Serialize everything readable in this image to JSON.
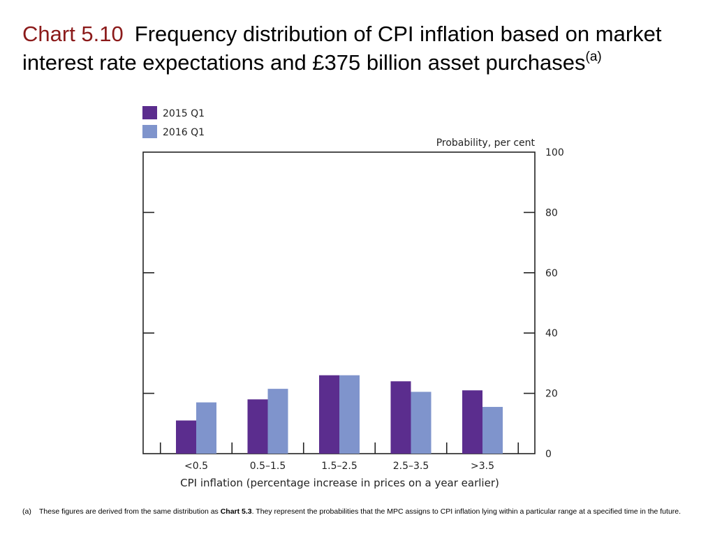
{
  "title": {
    "number": "Chart 5.10",
    "text": "Frequency distribution of CPI inflation based on market interest rate expectations and £375 billion asset purchases",
    "note_ref": "(a)"
  },
  "chart_data": {
    "type": "bar",
    "categories": [
      "<0.5",
      "0.5–1.5",
      "1.5–2.5",
      "2.5–3.5",
      ">3.5"
    ],
    "series": [
      {
        "name": "2015 Q1",
        "color": "#5b2d8e",
        "values": [
          11,
          18,
          26,
          24,
          21
        ]
      },
      {
        "name": "2016 Q1",
        "color": "#7f94cc",
        "values": [
          17,
          21.5,
          26,
          20.5,
          15.5
        ]
      }
    ],
    "xlabel": "CPI inflation (percentage increase in prices on a year earlier)",
    "ylabel": "Probability, per cent",
    "ylim": [
      0,
      100
    ],
    "yticks": [
      0,
      20,
      40,
      60,
      80,
      100
    ],
    "legend_position": "top-left",
    "grid": false
  },
  "footnote": {
    "marker": "(a)",
    "text_before": "These figures are derived from the same distribution as ",
    "bold_ref": "Chart 5.3",
    "text_after": ".  They represent the probabilities that the MPC assigns to CPI inflation lying within a particular range at a specified time in the future."
  }
}
